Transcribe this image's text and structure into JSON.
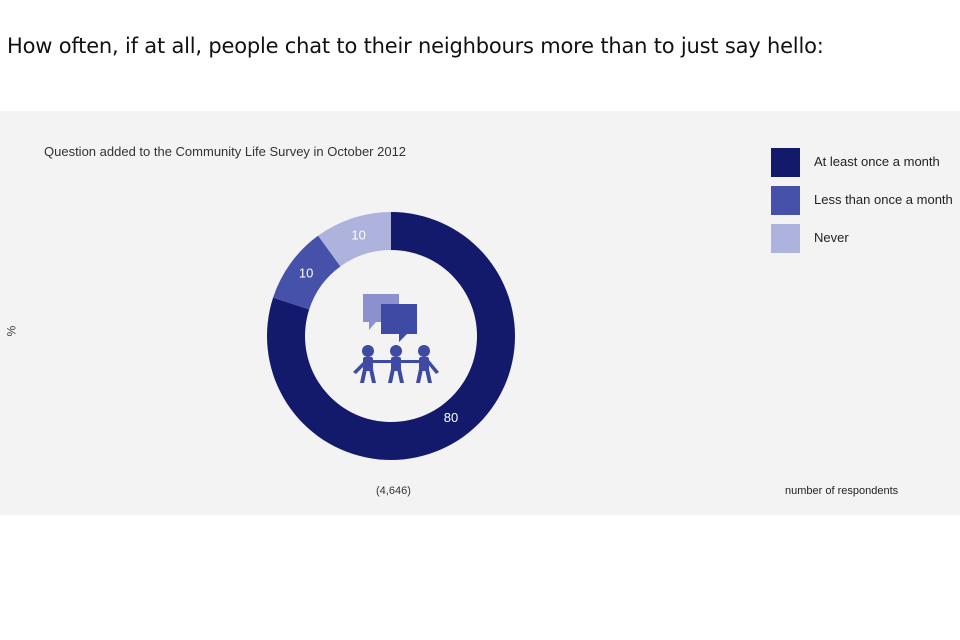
{
  "page": {
    "title": "How often, if at all, people chat to their neighbours more than to just say hello:"
  },
  "chart_data": {
    "type": "pie",
    "subtitle": "Question added to the Community Life Survey in October 2012",
    "y_unit": "%",
    "categories": [
      "At least once a month",
      "Less than once a month",
      "Never"
    ],
    "values": [
      80,
      10,
      10
    ],
    "colors": [
      "#141a6b",
      "#4652aa",
      "#adb3dc"
    ],
    "respondents": "(4,646)",
    "respondents_caption": "number of respondents",
    "legend_position": "top-right",
    "center_icon": "people-chatting-icon"
  }
}
